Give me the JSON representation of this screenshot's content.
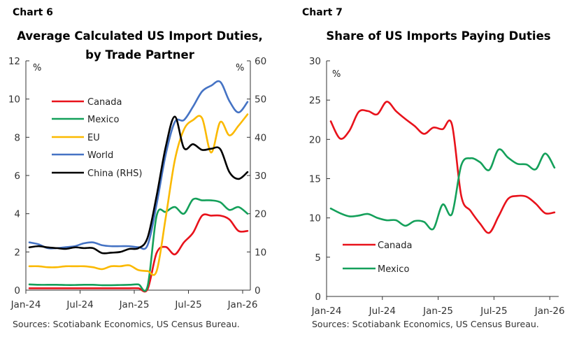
{
  "chart_data": [
    {
      "type": "line",
      "chart_number": "Chart 6",
      "title": [
        "Average Calculated US Import Duties,",
        "by Trade Partner"
      ],
      "ylabel": "%",
      "ylabel_right": "%",
      "ylim": [
        0,
        12
      ],
      "ylim_right": [
        0,
        60
      ],
      "yticks": [
        "0",
        "2",
        "4",
        "6",
        "8",
        "10",
        "12"
      ],
      "yticks_right": [
        "0",
        "10",
        "20",
        "30",
        "40",
        "50",
        "60"
      ],
      "xticks": [
        "Jan-24",
        "Jul-24",
        "Jan-25",
        "Jul-25",
        "Jan-26"
      ],
      "x": [
        "Jan-24",
        "Feb-24",
        "Mar-24",
        "Apr-24",
        "May-24",
        "Jun-24",
        "Jul-24",
        "Aug-24",
        "Sep-24",
        "Oct-24",
        "Nov-24",
        "Dec-24",
        "Jan-25",
        "Feb-25",
        "Mar-25",
        "Apr-25",
        "May-25",
        "Jun-25",
        "Jul-25",
        "Aug-25",
        "Sep-25",
        "Oct-25",
        "Nov-25",
        "Dec-25",
        "Jan-26"
      ],
      "legend_placement": "upper-left",
      "grid": false,
      "series": [
        {
          "name": "Canada",
          "color": "#e8121b",
          "axis": "left",
          "values": [
            0.1,
            0.1,
            0.1,
            0.1,
            0.1,
            0.1,
            0.1,
            0.1,
            0.1,
            0.1,
            0.1,
            0.1,
            0.1,
            0.05,
            1.95,
            2.26,
            1.87,
            2.5,
            3.0,
            3.9,
            3.9,
            3.9,
            3.7,
            3.1,
            3.1
          ]
        },
        {
          "name": "Mexico",
          "color": "#14a05a",
          "axis": "left",
          "values": [
            0.3,
            0.28,
            0.28,
            0.28,
            0.27,
            0.27,
            0.28,
            0.28,
            0.26,
            0.26,
            0.27,
            0.28,
            0.3,
            0.2,
            3.9,
            4.1,
            4.35,
            4.0,
            4.75,
            4.7,
            4.7,
            4.6,
            4.2,
            4.35,
            4.0
          ]
        },
        {
          "name": "EU",
          "color": "#fbb900",
          "axis": "left",
          "values": [
            1.25,
            1.25,
            1.2,
            1.2,
            1.25,
            1.25,
            1.25,
            1.2,
            1.1,
            1.25,
            1.25,
            1.3,
            1.05,
            1.0,
            1.0,
            3.8,
            6.8,
            8.4,
            8.9,
            9.0,
            7.2,
            8.8,
            8.1,
            8.6,
            9.2
          ]
        },
        {
          "name": "World",
          "color": "#4573c4",
          "axis": "left",
          "values": [
            2.5,
            2.4,
            2.2,
            2.2,
            2.25,
            2.3,
            2.45,
            2.5,
            2.35,
            2.3,
            2.3,
            2.3,
            2.25,
            2.35,
            4.5,
            7.1,
            8.8,
            8.9,
            9.6,
            10.4,
            10.7,
            10.9,
            9.9,
            9.3,
            9.85
          ]
        },
        {
          "name": "China (RHS)",
          "color": "#000000",
          "axis": "right",
          "values": [
            11.2,
            11.5,
            11.2,
            11,
            10.8,
            11.2,
            11,
            11,
            9.7,
            9.8,
            10,
            10.8,
            11,
            13.7,
            24.7,
            37.5,
            45.4,
            37.2,
            38.2,
            36.7,
            37,
            36.9,
            30.9,
            29.1,
            30.9
          ]
        }
      ],
      "source": "Sources: Scotiabank Economics, US Census Bureau."
    },
    {
      "type": "line",
      "chart_number": "Chart 7",
      "title": [
        "Share of US Imports Paying Duties"
      ],
      "ylabel": "%",
      "ylim": [
        0,
        30
      ],
      "yticks": [
        "0",
        "5",
        "10",
        "15",
        "20",
        "25",
        "30"
      ],
      "xticks": [
        "Jan-24",
        "Jul-24",
        "Jan-25",
        "Jul-25",
        "Jan-26"
      ],
      "x": [
        "Jan-24",
        "Feb-24",
        "Mar-24",
        "Apr-24",
        "May-24",
        "Jun-24",
        "Jul-24",
        "Aug-24",
        "Sep-24",
        "Oct-24",
        "Nov-24",
        "Dec-24",
        "Jan-25",
        "Feb-25",
        "Mar-25",
        "Apr-25",
        "May-25",
        "Jun-25",
        "Jul-25",
        "Aug-25",
        "Sep-25",
        "Oct-25",
        "Nov-25",
        "Dec-25",
        "Jan-26"
      ],
      "legend_placement": "lower-left",
      "grid": false,
      "series": [
        {
          "name": "Canada",
          "color": "#e8121b",
          "values": [
            22.3,
            20.1,
            21.1,
            23.5,
            23.6,
            23.2,
            24.8,
            23.6,
            22.6,
            21.7,
            20.7,
            21.5,
            21.3,
            21.9,
            12.8,
            10.9,
            9.3,
            8.1,
            10.2,
            12.4,
            12.8,
            12.7,
            11.8,
            10.6,
            10.7
          ]
        },
        {
          "name": "Mexico",
          "color": "#14a05a",
          "values": [
            11.2,
            10.6,
            10.2,
            10.3,
            10.5,
            10.0,
            9.7,
            9.7,
            9.0,
            9.6,
            9.5,
            8.6,
            11.7,
            10.5,
            16.7,
            17.6,
            17.1,
            16.1,
            18.7,
            17.7,
            16.9,
            16.8,
            16.2,
            18.2,
            16.4
          ]
        }
      ],
      "source": "Sources: Scotiabank Economics, US Census Bureau."
    }
  ]
}
